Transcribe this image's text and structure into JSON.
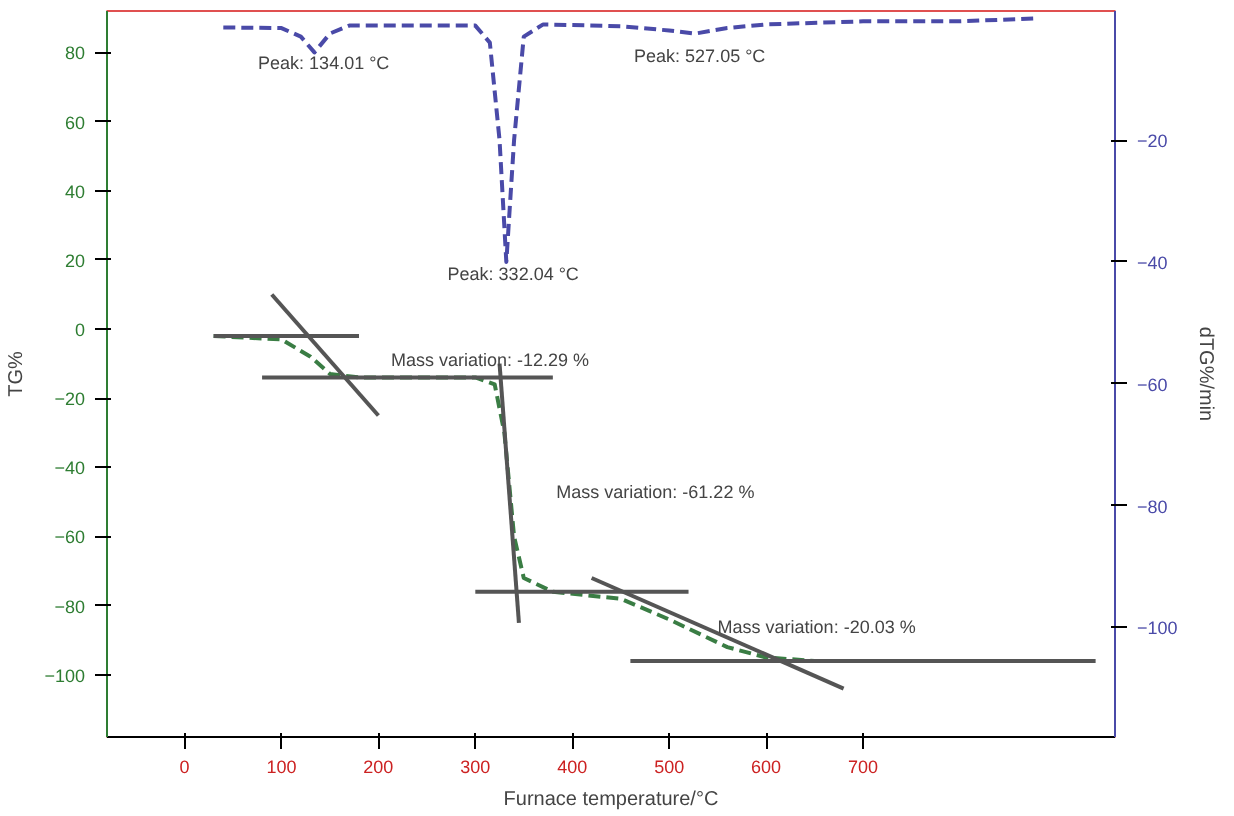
{
  "chart_data": {
    "type": "line",
    "xlabel": "Furnace temperature/°C",
    "ylabel": "TG%",
    "y2label": "dTG%/min",
    "xlim": [
      -80,
      960
    ],
    "ylim": [
      -118,
      92
    ],
    "y2lim": [
      -118,
      1.2
    ],
    "xticks": [
      0,
      100,
      200,
      300,
      400,
      500,
      600,
      700
    ],
    "yticks": [
      -100,
      -80,
      -60,
      -40,
      -20,
      0,
      20,
      40,
      60,
      80
    ],
    "y2ticks": [
      -100,
      -80,
      -60,
      -40,
      -20
    ],
    "grid": false,
    "line_style": "dashed",
    "series": [
      {
        "color": "#3a7d44",
        "x": [
          30,
          100,
          130,
          150,
          180,
          300,
          320,
          330,
          340,
          350,
          380,
          450,
          500,
          560,
          600,
          650,
          900
        ],
        "values": [
          -2,
          -3,
          -8,
          -13,
          -14,
          -14,
          -16,
          -30,
          -60,
          -72,
          -76,
          -78,
          -84,
          -92,
          -95,
          -96,
          -96
        ]
      },
      {
        "color": "#4a4aa8",
        "axis": "y2",
        "x": [
          40,
          100,
          120,
          134,
          150,
          170,
          300,
          315,
          325,
          332,
          340,
          350,
          370,
          450,
          500,
          527,
          560,
          600,
          700,
          800,
          880
        ],
        "values": [
          -1.5,
          -1.6,
          -3,
          -5.6,
          -2.5,
          -1.2,
          -1.2,
          -4,
          -20,
          -40,
          -20,
          -3,
          -1,
          -1.3,
          -2,
          -2.5,
          -1.6,
          -1,
          -0.5,
          -0.5,
          0
        ]
      },
      {
        "color": "#555555",
        "line_style": "solid",
        "x": [
          30,
          180
        ],
        "values": [
          -2,
          -2
        ]
      },
      {
        "color": "#555555",
        "line_style": "solid",
        "x": [
          90,
          200
        ],
        "values": [
          10,
          -25
        ]
      },
      {
        "color": "#555555",
        "line_style": "solid",
        "x": [
          80,
          380
        ],
        "values": [
          -14,
          -14
        ]
      },
      {
        "color": "#555555",
        "line_style": "solid",
        "x": [
          325,
          345
        ],
        "values": [
          -10,
          -85
        ]
      },
      {
        "color": "#555555",
        "line_style": "solid",
        "x": [
          300,
          520
        ],
        "values": [
          -76,
          -76
        ]
      },
      {
        "color": "#555555",
        "line_style": "solid",
        "x": [
          420,
          680
        ],
        "values": [
          -72,
          -104
        ]
      },
      {
        "color": "#555555",
        "line_style": "solid",
        "x": [
          460,
          940
        ],
        "values": [
          -96,
          -96
        ]
      }
    ],
    "annotations": [
      "Peak: 134.01 °C",
      "Peak: 332.04 °C",
      "Peak: 527.05 °C",
      "Mass variation: -12.29 %",
      "Mass variation: -61.22 %",
      "Mass variation: -20.03 %"
    ]
  }
}
